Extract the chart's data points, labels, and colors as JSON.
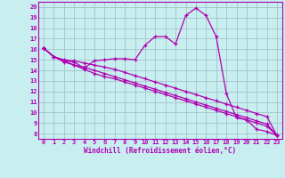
{
  "background_color": "#c8eef0",
  "grid_color": "#a8c8d0",
  "line_color": "#b000b0",
  "xlabel": "Windchill (Refroidissement éolien,°C)",
  "xlim": [
    -0.5,
    23.5
  ],
  "ylim": [
    7.5,
    20.5
  ],
  "xticks": [
    0,
    1,
    2,
    3,
    4,
    5,
    6,
    7,
    8,
    9,
    10,
    11,
    12,
    13,
    14,
    15,
    16,
    17,
    18,
    19,
    20,
    21,
    22,
    23
  ],
  "yticks": [
    8,
    9,
    10,
    11,
    12,
    13,
    14,
    15,
    16,
    17,
    18,
    19,
    20
  ],
  "series1_x": [
    0,
    1,
    2,
    3,
    4,
    5,
    6,
    7,
    8,
    9,
    10,
    11,
    12,
    13,
    14,
    15,
    16,
    17,
    18,
    19,
    20,
    21,
    22,
    23
  ],
  "series1_y": [
    16.1,
    15.3,
    14.9,
    14.8,
    14.2,
    14.9,
    15.0,
    15.1,
    15.1,
    15.0,
    16.4,
    17.2,
    17.2,
    16.5,
    19.2,
    19.9,
    19.2,
    17.2,
    11.8,
    9.5,
    9.3,
    8.4,
    8.2,
    7.8
  ],
  "series2_x": [
    0,
    1,
    2,
    3,
    4,
    5,
    6,
    7,
    8,
    9,
    10,
    11,
    12,
    13,
    14,
    15,
    16,
    17,
    18,
    19,
    20,
    21,
    22,
    23
  ],
  "series2_y": [
    16.1,
    15.3,
    14.9,
    14.5,
    14.3,
    14.0,
    13.7,
    13.4,
    13.1,
    12.8,
    12.5,
    12.2,
    11.9,
    11.6,
    11.3,
    11.0,
    10.7,
    10.4,
    10.1,
    9.8,
    9.5,
    9.2,
    8.9,
    7.8
  ],
  "series3_x": [
    0,
    1,
    2,
    3,
    4,
    5,
    6,
    7,
    8,
    9,
    10,
    11,
    12,
    13,
    14,
    15,
    16,
    17,
    18,
    19,
    20,
    21,
    22,
    23
  ],
  "series3_y": [
    16.1,
    15.3,
    14.8,
    14.5,
    14.1,
    13.7,
    13.4,
    13.2,
    12.9,
    12.6,
    12.3,
    12.0,
    11.7,
    11.4,
    11.1,
    10.8,
    10.5,
    10.2,
    9.9,
    9.6,
    9.3,
    9.0,
    8.7,
    7.8
  ],
  "series4_x": [
    0,
    1,
    2,
    3,
    4,
    5,
    6,
    7,
    8,
    9,
    10,
    11,
    12,
    13,
    14,
    15,
    16,
    17,
    18,
    19,
    20,
    21,
    22,
    23
  ],
  "series4_y": [
    16.1,
    15.3,
    15.0,
    14.9,
    14.7,
    14.5,
    14.3,
    14.1,
    13.8,
    13.5,
    13.2,
    12.9,
    12.6,
    12.3,
    12.0,
    11.7,
    11.4,
    11.1,
    10.8,
    10.5,
    10.2,
    9.9,
    9.6,
    7.8
  ]
}
